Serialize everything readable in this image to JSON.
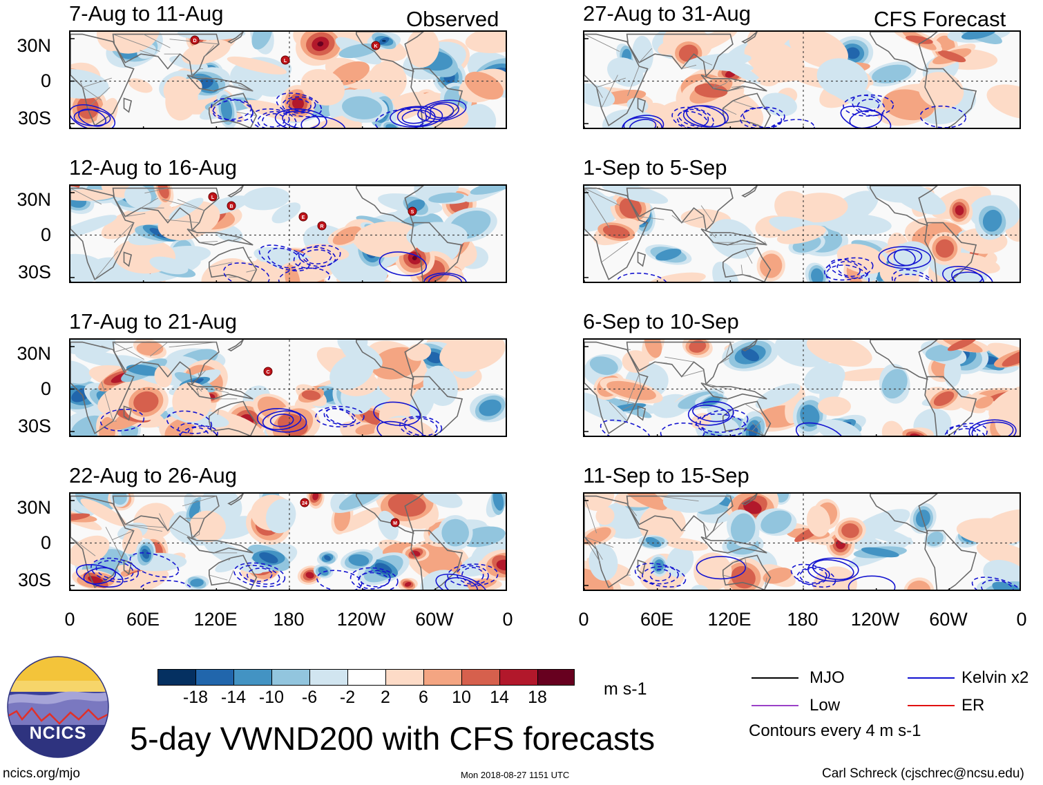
{
  "panels_left": [
    {
      "title": "7-Aug to 11-Aug",
      "label": "Observed",
      "storms": [
        "D",
        "L",
        "K"
      ]
    },
    {
      "title": "12-Aug to 16-Aug",
      "storms": [
        "B",
        "R",
        "S",
        "L",
        "E"
      ]
    },
    {
      "title": "17-Aug to 21-Aug",
      "storms": [
        "C"
      ]
    },
    {
      "title": "22-Aug to 26-Aug",
      "storms": [
        "24",
        "M"
      ]
    }
  ],
  "panels_right": [
    {
      "title": "27-Aug to 31-Aug",
      "label": "CFS Forecast"
    },
    {
      "title": "1-Sep to 5-Sep"
    },
    {
      "title": "6-Sep to 10-Sep"
    },
    {
      "title": "11-Sep to 15-Sep"
    }
  ],
  "lat_labels": [
    "30N",
    "0",
    "30S"
  ],
  "lon_labels": [
    "0",
    "60E",
    "120E",
    "180",
    "120W",
    "60W",
    "0"
  ],
  "colorbar": {
    "ticks": [
      "-18",
      "-14",
      "-10",
      "-6",
      "-2",
      "2",
      "6",
      "10",
      "14",
      "18"
    ],
    "units": "m s-1",
    "colors": [
      "#053061",
      "#2166ac",
      "#4393c3",
      "#92c5de",
      "#d1e5f0",
      "#ffffff",
      "#fddbc7",
      "#f4a582",
      "#d6604d",
      "#b2182b",
      "#67001f"
    ]
  },
  "legend": {
    "items": [
      {
        "label": "MJO",
        "color": "#000000"
      },
      {
        "label": "Kelvin x2",
        "color": "#1010d0"
      },
      {
        "label": "Low",
        "color": "#9a40c8"
      },
      {
        "label": "ER",
        "color": "#e01010"
      }
    ],
    "note": "Contours every 4 m s-1"
  },
  "logo_text": "NCICS",
  "main_title": "5-day VWND200 with CFS forecasts",
  "footer": {
    "left": "ncics.org/mjo",
    "center": "Mon 2018-08-27 1151 UTC",
    "right": "Carl Schreck (cjschrec@ncsu.edu)"
  }
}
